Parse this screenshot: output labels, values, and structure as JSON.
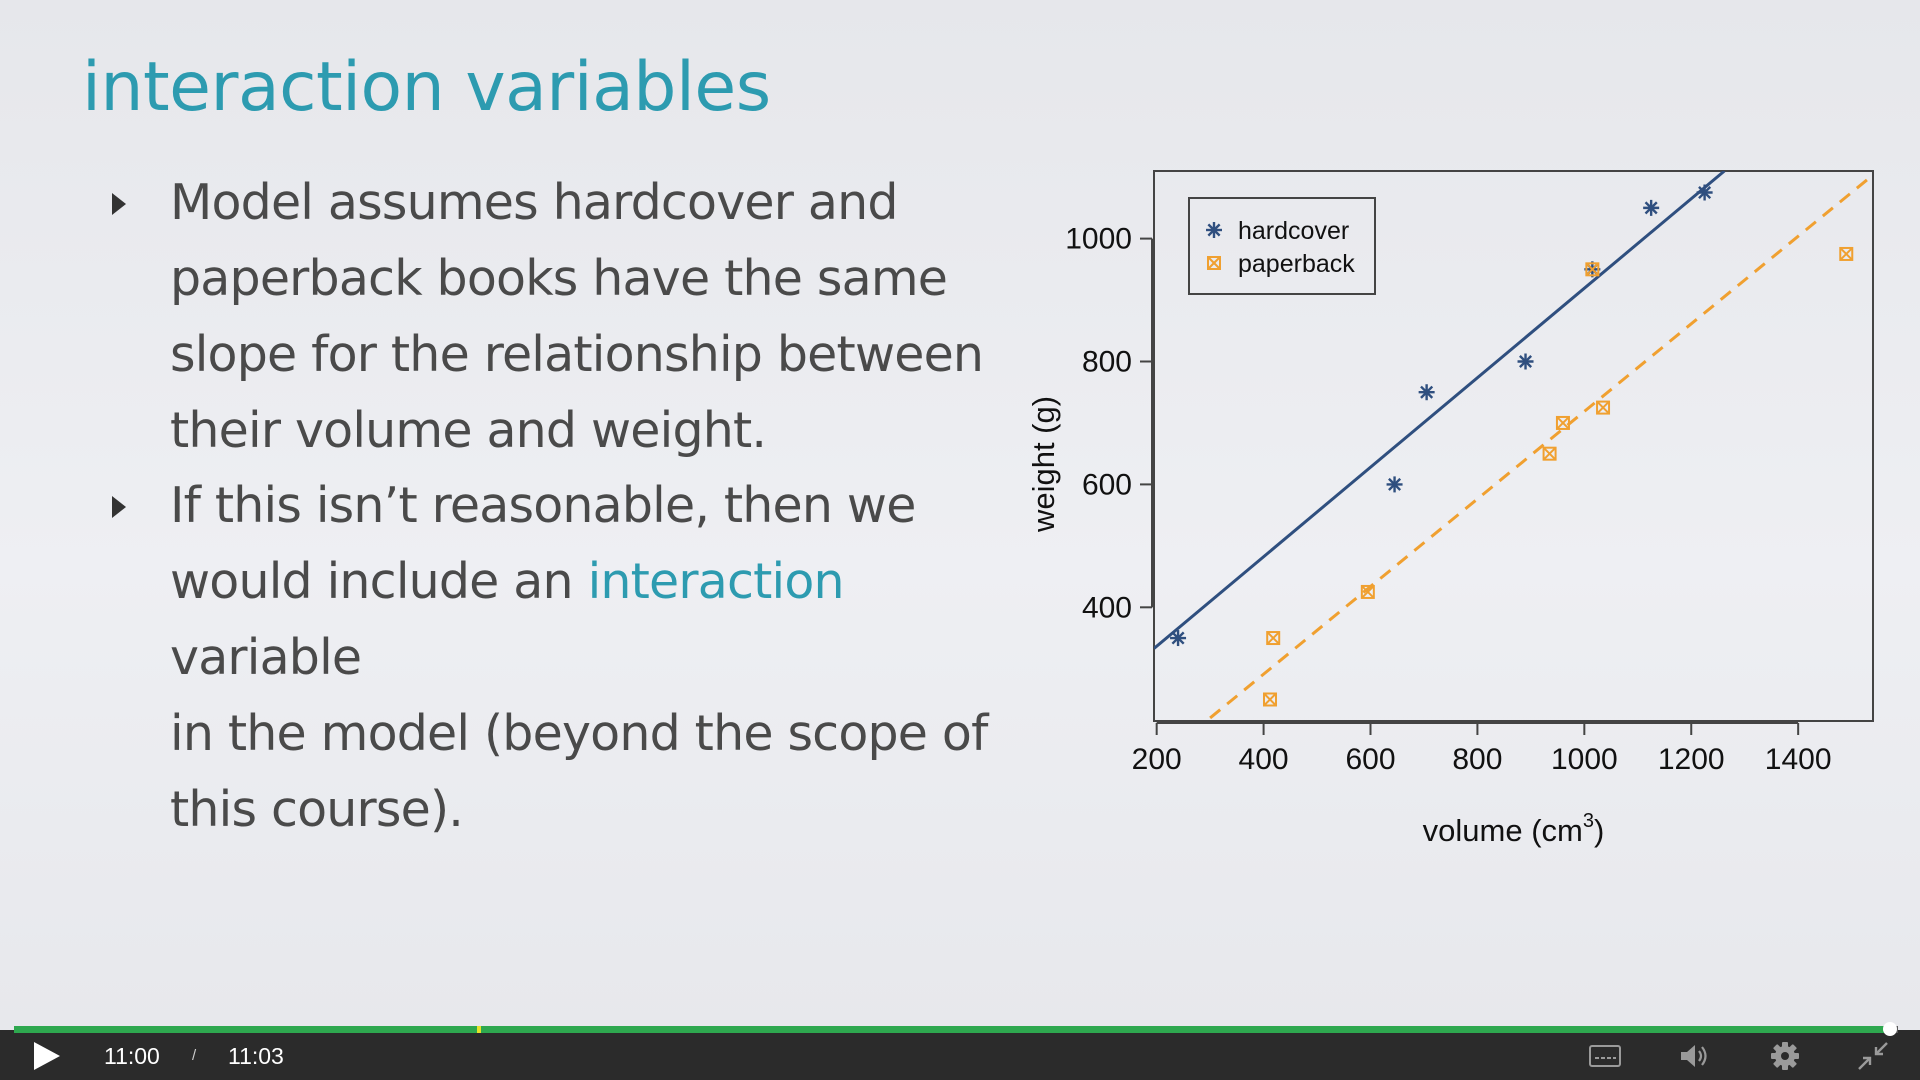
{
  "slide": {
    "title": "interaction variables",
    "bullets": [
      {
        "lines": [
          [
            {
              "text": "Model assumes hardcover and"
            }
          ],
          [
            {
              "text": "paperback books have the same"
            }
          ],
          [
            {
              "text": "slope for the relationship between"
            }
          ],
          [
            {
              "text": "their volume and weight."
            }
          ]
        ]
      },
      {
        "lines": [
          [
            {
              "text": "If this isn’t reasonable, then we"
            }
          ],
          [
            {
              "text": "would include an "
            },
            {
              "text": "interaction",
              "highlight": true
            },
            {
              "text": " variable"
            }
          ],
          [
            {
              "text": "in the model (beyond the scope of"
            }
          ],
          [
            {
              "text": "this course)."
            }
          ]
        ]
      }
    ]
  },
  "chart_data": {
    "type": "scatter",
    "xlabel": "volume (cm",
    "xlabel_superscript": "3",
    "xlabel_suffix": ")",
    "ylabel": "weight (g)",
    "xlim": [
      195,
      1540
    ],
    "ylim": [
      215,
      1110
    ],
    "x_ticks": [
      200,
      400,
      600,
      800,
      1000,
      1200,
      1400
    ],
    "y_ticks": [
      400,
      600,
      800,
      1000
    ],
    "grid": false,
    "legend_position": "top-left",
    "series": [
      {
        "name": "hardcover",
        "marker": "asterisk",
        "color": "#2f4f7f",
        "points": [
          [
            240,
            350
          ],
          [
            645,
            600
          ],
          [
            705,
            750
          ],
          [
            890,
            800
          ],
          [
            1015,
            950
          ],
          [
            1125,
            1050
          ],
          [
            1225,
            1075
          ]
        ],
        "fit_line": {
          "style": "solid",
          "x": [
            195,
            1262
          ],
          "y": [
            333,
            1110
          ]
        }
      },
      {
        "name": "paperback",
        "marker": "boxed-x",
        "color": "#f0a030",
        "points": [
          [
            412,
            250
          ],
          [
            418,
            350
          ],
          [
            595,
            425
          ],
          [
            935,
            650
          ],
          [
            960,
            700
          ],
          [
            1035,
            725
          ],
          [
            1015,
            950
          ],
          [
            1490,
            975
          ]
        ],
        "fit_line": {
          "style": "dashed",
          "x": [
            300,
            1535
          ],
          "y": [
            220,
            1100
          ]
        }
      }
    ]
  },
  "player": {
    "current_time": "11:00",
    "separator": "/",
    "total_time": "11:03",
    "progress": 0.9955,
    "marker_progress": 0.247,
    "colors": {
      "played": "#2ea84f",
      "marker": "#e6e32a",
      "bar": "#2b2b2b"
    },
    "icons": {
      "play": "play-icon",
      "captions": "captions-icon",
      "volume": "volume-icon",
      "settings": "gear-icon",
      "exit_fullscreen": "exit-fullscreen-icon"
    }
  }
}
